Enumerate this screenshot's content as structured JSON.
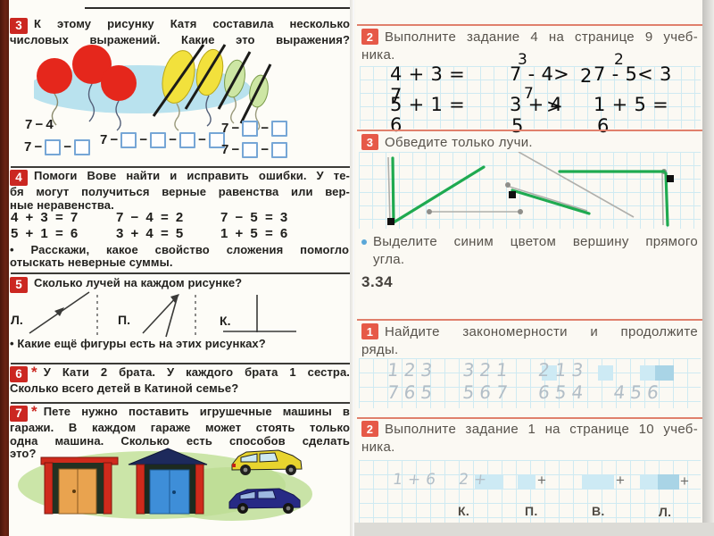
{
  "colors": {
    "badge_left": "#cb2721",
    "badge_right": "#e65948",
    "rule_salmon": "#e0806c",
    "grid_line": "#cfeaf2",
    "trace_green": "#1faa50",
    "highlight_cell": "#cdeaf4",
    "binding": "#5e2011"
  },
  "left_page": {
    "task3": {
      "number": "3",
      "lines": [
        "К этому рисунку Катя составила несколько",
        "числовых выражений. Какие это выражения?"
      ],
      "expressions": {
        "e1": [
          "7",
          "−",
          "4"
        ],
        "e2": [
          "7",
          "−",
          "□",
          "−",
          "□"
        ],
        "e3": [
          "7",
          "−",
          "□",
          "−",
          "□",
          "−",
          "□",
          "−",
          "□"
        ],
        "e4": [
          "7",
          "−",
          "□",
          "−",
          "□"
        ],
        "e5": [
          "7",
          "−",
          "□",
          "−",
          "□"
        ]
      }
    },
    "task4": {
      "number": "4",
      "lines": [
        "Помоги Вове найти и исправить ошибки. У те-",
        "бя могут получиться верные равенства или вер-",
        "ные неравенства."
      ],
      "equations": [
        "4 + 3 = 7",
        "7 − 4 = 2",
        "7 − 5 = 3",
        "5 + 1 = 6",
        "3 + 4 = 5",
        "1 + 5 = 6"
      ],
      "bullet_lines": [
        "• Расскажи, какое свойство сложения помогло",
        "отыскать неверные суммы."
      ]
    },
    "task5": {
      "number": "5",
      "lines": [
        "Сколько лучей на каждом рисунке?"
      ],
      "figure_labels": [
        "Л.",
        "П.",
        "К."
      ],
      "bullet_lines": [
        "• Какие ещё фигуры есть на этих рисунках?"
      ]
    },
    "task6": {
      "number": "6",
      "star": "*",
      "lines": [
        "У Кати 2 брата. У каждого брата 1 сестра.",
        "Сколько всего детей в Катиной семье?"
      ]
    },
    "task7": {
      "number": "7",
      "star": "*",
      "lines": [
        "Пете нужно поставить игрушечные машины в",
        "гаражи. В каждом гараже может стоять только",
        "одна машина. Сколько есть способов сделать",
        "это?"
      ]
    }
  },
  "right_page": {
    "task2_top": {
      "number": "2",
      "lines": [
        "Выполните задание 4 на странице 9 учеб-",
        "ника."
      ]
    },
    "typed_answers": {
      "a1": "4 + 3 =",
      "a1v": "7",
      "a2": "5 + 1 =",
      "a2v": "6",
      "b1sup": "3",
      "b1": "7 - 4>",
      "b1after": "2",
      "b2sup": "7",
      "b2": "3 + 4",
      "b2arrow": ">",
      "b2v": "5",
      "c1sup": "2",
      "c1": "7 - 5< 3",
      "c2": "1 + 5 =",
      "c2v": "6"
    },
    "task3": {
      "number": "3",
      "lines": [
        "Обведите только лучи."
      ]
    },
    "bullet": {
      "marker": "•",
      "lines": [
        "Выделите синим цветом вершину прямого",
        "угла."
      ]
    },
    "section_number": "3.34",
    "task1": {
      "number": "1",
      "lines": [
        "Найдите закономерности и продолжите",
        "ряды."
      ],
      "sequences": [
        "123 321 213",
        "765 567 654 456"
      ]
    },
    "task2_bottom": {
      "number": "2",
      "lines": [
        "Выполните задание 1 на странице 10 учеб-",
        "ника."
      ],
      "faint_entries": [
        "1 + 6",
        "2 +",
        "+",
        "+",
        "+"
      ],
      "point_labels": [
        "К.",
        "П.",
        "В.",
        "Л."
      ]
    }
  }
}
